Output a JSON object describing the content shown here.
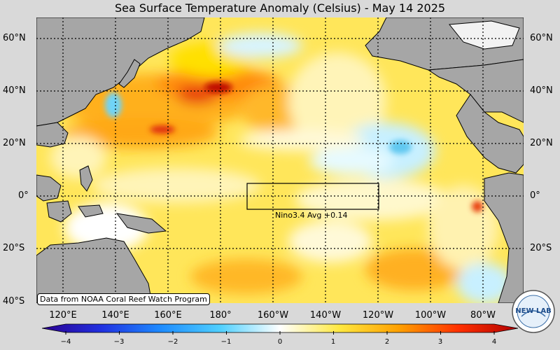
{
  "title": "Sea Surface Temperature Anomaly (Celsius) - May 14 2025",
  "lat_labels": [
    "60°N",
    "40°N",
    "20°N",
    "0°",
    "20°S",
    "40°S"
  ],
  "lon_labels": [
    "120°E",
    "140°E",
    "160°E",
    "180°",
    "160°W",
    "140°W",
    "120°W",
    "100°W",
    "80°W"
  ],
  "nino_box": {
    "name": "Nino3.4",
    "label": "Nino3.4 Avg  +0.14",
    "value": 0.14
  },
  "credit": "Data from NOAA Coral Reef Watch Program",
  "colorbar": {
    "ticks": [
      "−4",
      "−3",
      "−2",
      "−1",
      "0",
      "1",
      "2",
      "3",
      "4"
    ],
    "min": -4,
    "max": 4,
    "colors": [
      "#2b0090",
      "#2030e0",
      "#1e8cff",
      "#50d0ff",
      "#ffffff",
      "#ffe840",
      "#ffa000",
      "#ff3000",
      "#b00000"
    ]
  },
  "colors": {
    "land": "#a6a6a6",
    "background": "#d9d9d9",
    "grid": "#000000",
    "ocean_base": "#fff066"
  },
  "logo": {
    "text": "NEW LAB"
  }
}
